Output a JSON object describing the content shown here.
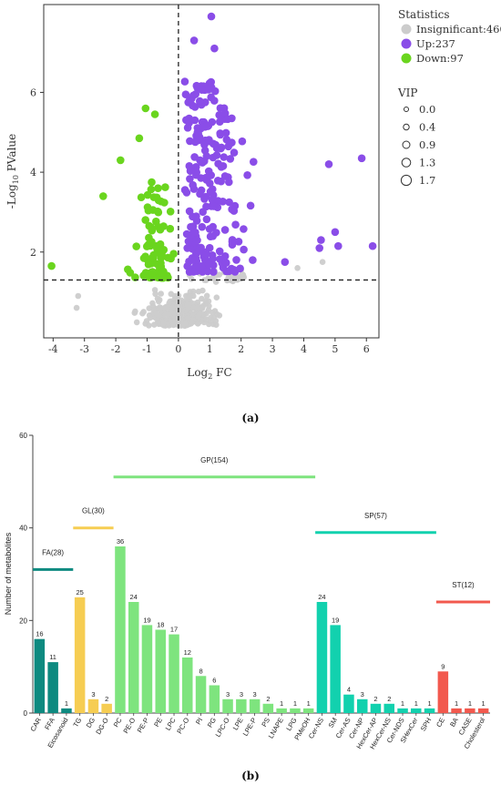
{
  "panel_labels": {
    "a": "(a)",
    "b": "(b)"
  },
  "chart_data": [
    {
      "type": "scatter",
      "xlabel_main": "Log",
      "xlabel_sub": "2",
      "xlabel_tail": " FC",
      "ylabel_pre": "-Log",
      "ylabel_sub": "10",
      "ylabel_tail": " PValue",
      "xlim": [
        -4.3,
        6.4
      ],
      "ylim": [
        -0.15,
        8.2
      ],
      "xticks": [
        -4,
        -3,
        -2,
        -1,
        0,
        1,
        2,
        3,
        4,
        5,
        6
      ],
      "yticks": [
        2,
        4,
        6
      ],
      "threshold_y": 1.3,
      "threshold_x": 0,
      "legend": {
        "statistics_title": "Statistics",
        "groups": [
          {
            "label": "Insignificant:460",
            "color": "#cccccc"
          },
          {
            "label": "Up:237",
            "color": "#8a4de8"
          },
          {
            "label": "Down:97",
            "color": "#6ad51e"
          }
        ],
        "vip_title": "VIP",
        "vip_levels": [
          "0.0",
          "0.4",
          "0.9",
          "1.3",
          "1.7"
        ]
      },
      "colors": {
        "insignificant": "#cccccc",
        "up": "#8a4de8",
        "down": "#6ad51e"
      },
      "highlight_points": [
        {
          "group": "up",
          "x": 1.05,
          "y": 7.9
        },
        {
          "group": "up",
          "x": 0.5,
          "y": 7.3
        },
        {
          "group": "up",
          "x": 1.15,
          "y": 7.1
        },
        {
          "group": "up",
          "x": 5.85,
          "y": 4.35
        },
        {
          "group": "up",
          "x": 4.8,
          "y": 4.2
        },
        {
          "group": "up",
          "x": 6.2,
          "y": 2.15
        },
        {
          "group": "up",
          "x": 5.0,
          "y": 2.5
        },
        {
          "group": "up",
          "x": 5.1,
          "y": 2.15
        },
        {
          "group": "up",
          "x": 4.5,
          "y": 2.1
        },
        {
          "group": "up",
          "x": 4.55,
          "y": 2.3
        },
        {
          "group": "up",
          "x": 3.4,
          "y": 1.75
        },
        {
          "group": "down",
          "x": -4.05,
          "y": 1.65
        },
        {
          "group": "down",
          "x": -1.05,
          "y": 5.6
        },
        {
          "group": "down",
          "x": -0.75,
          "y": 5.45
        },
        {
          "group": "down",
          "x": -1.25,
          "y": 4.85
        },
        {
          "group": "down",
          "x": -1.85,
          "y": 4.3
        },
        {
          "group": "down",
          "x": -2.4,
          "y": 3.4
        },
        {
          "group": "insignificant",
          "x": -3.2,
          "y": 0.9
        },
        {
          "group": "insignificant",
          "x": -3.25,
          "y": 0.6
        },
        {
          "group": "insignificant",
          "x": 3.8,
          "y": 1.6
        },
        {
          "group": "insignificant",
          "x": 4.6,
          "y": 1.75
        }
      ]
    },
    {
      "type": "bar",
      "ylabel": "Number of metabolites",
      "ylim": [
        0,
        60
      ],
      "yticks": [
        0,
        20,
        40,
        60
      ],
      "categories": [
        "CAR",
        "FFA",
        "Eicosanoid",
        "TG",
        "DG",
        "DG-O",
        "PC",
        "PE-O",
        "PE-P",
        "PE",
        "LPC",
        "PC-O",
        "PI",
        "PG",
        "LPC-O",
        "LPE",
        "LPE-P",
        "PS",
        "LNAPE",
        "LPG",
        "PMeOH",
        "Cer-NS",
        "SM",
        "Cer-AS",
        "Cer-NP",
        "HexCer-AP",
        "HexCer-NS",
        "Cer-NDS",
        "SHexCer",
        "SPH",
        "CE",
        "BA",
        "CASE",
        "Cholesterol"
      ],
      "values": [
        16,
        11,
        1,
        25,
        3,
        2,
        36,
        24,
        19,
        18,
        17,
        12,
        8,
        6,
        3,
        3,
        3,
        2,
        1,
        1,
        1,
        24,
        19,
        4,
        3,
        2,
        2,
        1,
        1,
        1,
        9,
        1,
        1,
        1
      ],
      "bar_colors": [
        "#0e8a80",
        "#0e8a80",
        "#0e8a80",
        "#f6cd52",
        "#f6cd52",
        "#f6cd52",
        "#7ee47e",
        "#7ee47e",
        "#7ee47e",
        "#7ee47e",
        "#7ee47e",
        "#7ee47e",
        "#7ee47e",
        "#7ee47e",
        "#7ee47e",
        "#7ee47e",
        "#7ee47e",
        "#7ee47e",
        "#7ee47e",
        "#7ee47e",
        "#7ee47e",
        "#12d1ae",
        "#12d1ae",
        "#12d1ae",
        "#12d1ae",
        "#12d1ae",
        "#12d1ae",
        "#12d1ae",
        "#12d1ae",
        "#12d1ae",
        "#f2594e",
        "#f2594e",
        "#f2594e",
        "#f2594e"
      ],
      "groups": [
        {
          "label": "FA(28)",
          "start": 0,
          "end": 2,
          "level": 31,
          "color": "#0e8a80"
        },
        {
          "label": "GL(30)",
          "start": 3,
          "end": 5,
          "level": 40,
          "color": "#f6cd52"
        },
        {
          "label": "GP(154)",
          "start": 6,
          "end": 20,
          "level": 51,
          "color": "#7ee47e"
        },
        {
          "label": "SP(57)",
          "start": 21,
          "end": 29,
          "level": 39,
          "color": "#12d1ae"
        },
        {
          "label": "ST(12)",
          "start": 30,
          "end": 33,
          "level": 24,
          "color": "#f2594e"
        }
      ]
    }
  ]
}
